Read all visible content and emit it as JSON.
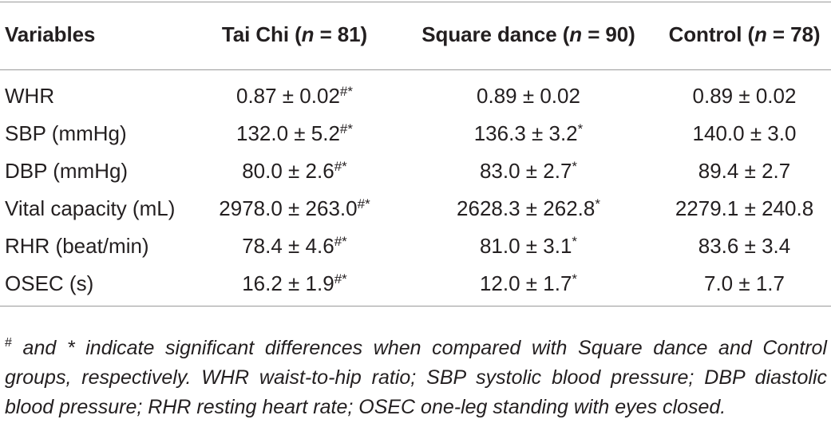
{
  "table": {
    "headers": {
      "variables": "Variables",
      "tai_chi": {
        "label": "Tai Chi (",
        "n": "n",
        "count": " = 81)"
      },
      "square_dance": {
        "label": "Square dance (",
        "n": "n",
        "count": " = 90)"
      },
      "control": {
        "label": "Control (",
        "n": "n",
        "count": " = 78)"
      }
    },
    "rows": [
      {
        "variable": "WHR",
        "tai_chi": "0.87 ± 0.02",
        "tai_chi_mark": "#*",
        "square_dance": "0.89 ± 0.02",
        "square_dance_mark": "",
        "control": "0.89 ± 0.02"
      },
      {
        "variable": "SBP (mmHg)",
        "tai_chi": "132.0 ± 5.2",
        "tai_chi_mark": "#*",
        "square_dance": "136.3 ± 3.2",
        "square_dance_mark": "*",
        "control": "140.0 ± 3.0"
      },
      {
        "variable": "DBP (mmHg)",
        "tai_chi": "80.0 ± 2.6",
        "tai_chi_mark": "#*",
        "square_dance": "83.0 ± 2.7",
        "square_dance_mark": "*",
        "control": "89.4 ± 2.7"
      },
      {
        "variable": "Vital capacity (mL)",
        "tai_chi": "2978.0 ± 263.0",
        "tai_chi_mark": "#*",
        "square_dance": "2628.3 ± 262.8",
        "square_dance_mark": "*",
        "control": "2279.1 ± 240.8"
      },
      {
        "variable": "RHR (beat/min)",
        "tai_chi": "78.4 ± 4.6",
        "tai_chi_mark": "#*",
        "square_dance": "81.0 ± 3.1",
        "square_dance_mark": "*",
        "control": "83.6 ± 3.4"
      },
      {
        "variable": "OSEC (s)",
        "tai_chi": "16.2 ± 1.9",
        "tai_chi_mark": "#*",
        "square_dance": "12.0 ± 1.7",
        "square_dance_mark": "*",
        "control": "7.0 ± 1.7"
      }
    ]
  },
  "footnote": {
    "symbol": "#",
    "text": " and * indicate significant differences when compared with Square dance and Control groups, respectively. WHR waist-to-hip ratio; SBP systolic blood pressure; DBP diastolic blood pressure; RHR resting heart rate; OSEC one-leg standing with eyes closed."
  }
}
